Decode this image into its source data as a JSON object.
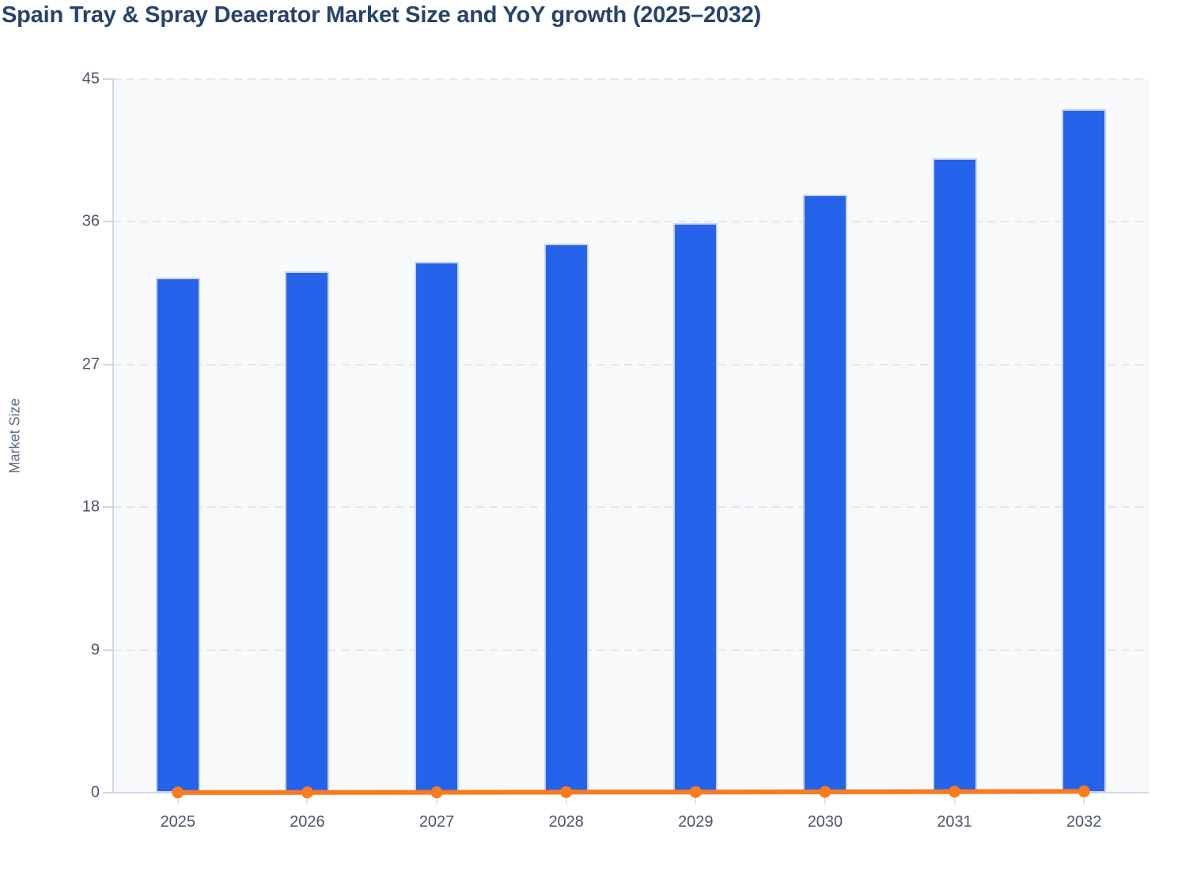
{
  "title": "Spain Tray & Spray Deaerator Market Size and YoY growth (2025–2032)",
  "chart_data": {
    "type": "bar",
    "subtype": "bar-line-combo",
    "title": "Spain Tray & Spray Deaerator Market Size and YoY growth (2025–2032)",
    "categories": [
      "2025",
      "2026",
      "2027",
      "2028",
      "2029",
      "2030",
      "2031",
      "2032"
    ],
    "series": [
      {
        "name": "Market Size",
        "type": "bar",
        "values": [
          32.5,
          32.9,
          33.5,
          34.6,
          35.9,
          37.7,
          40.0,
          43.1
        ],
        "color": "#2563eb"
      },
      {
        "name": "YoY growth",
        "type": "line",
        "values": [
          0.01,
          0.012,
          0.018,
          0.033,
          0.038,
          0.05,
          0.061,
          0.078
        ],
        "color": "#f87b1e"
      }
    ],
    "xlabel": "",
    "ylabel": "Market Size",
    "ylim": [
      0,
      45
    ],
    "yticks": [
      0,
      9,
      18,
      27,
      36,
      45
    ],
    "grid": "horizontal-dashed",
    "legend": "none",
    "plot_bg": "#f8f9fb",
    "gridline_color": "#e3e6ef",
    "axis_text_color": "#4a5568",
    "title_color": "#27436b"
  }
}
